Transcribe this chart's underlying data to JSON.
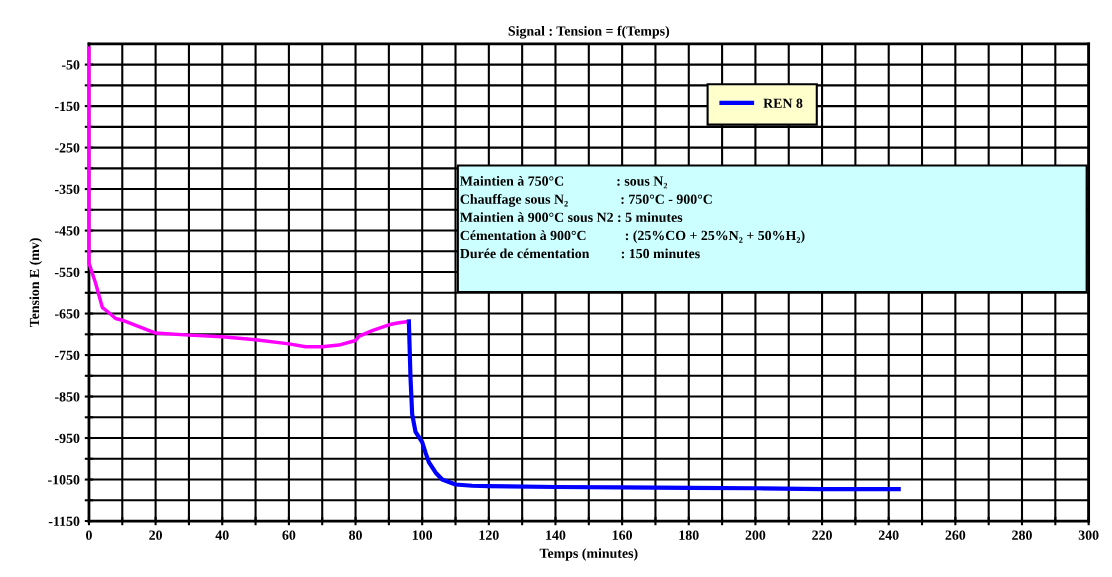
{
  "chart_data": {
    "type": "line",
    "title": "Signal : Tension = f(Temps)",
    "xlabel": "Temps (minutes)",
    "ylabel": "Tension E (mv)",
    "xlim": [
      0,
      300
    ],
    "ylim": [
      -1150,
      0
    ],
    "xticks": [
      0,
      {
        "value": 10,
        "label": null
      },
      20,
      {
        "value": 30,
        "label": null
      },
      40,
      {
        "value": 50,
        "label": null
      },
      60,
      {
        "value": 70,
        "label": null
      },
      80,
      {
        "value": 90,
        "label": null
      },
      100,
      {
        "value": 110,
        "label": null
      },
      120,
      {
        "value": 130,
        "label": null
      },
      140,
      {
        "value": 150,
        "label": null
      },
      160,
      {
        "value": 170,
        "label": null
      },
      180,
      {
        "value": 190,
        "label": null
      },
      200,
      {
        "value": 210,
        "label": null
      },
      220,
      {
        "value": 230,
        "label": null
      },
      240,
      {
        "value": 250,
        "label": null
      },
      260,
      {
        "value": 270,
        "label": null
      },
      280,
      {
        "value": 290,
        "label": null
      },
      300
    ],
    "yticks": [
      {
        "value": -1150,
        "label": "-1150"
      },
      {
        "value": -1100,
        "label": null
      },
      {
        "value": -1050,
        "label": "-1050"
      },
      {
        "value": -1000,
        "label": null
      },
      {
        "value": -950,
        "label": "-950"
      },
      {
        "value": -900,
        "label": null
      },
      {
        "value": -850,
        "label": "-850"
      },
      {
        "value": -800,
        "label": null
      },
      {
        "value": -750,
        "label": "-750"
      },
      {
        "value": -700,
        "label": null
      },
      {
        "value": -650,
        "label": "-650"
      },
      {
        "value": -600,
        "label": null
      },
      {
        "value": -550,
        "label": "-550"
      },
      {
        "value": -500,
        "label": null
      },
      {
        "value": -450,
        "label": "-450"
      },
      {
        "value": -400,
        "label": null
      },
      {
        "value": -350,
        "label": "-350"
      },
      {
        "value": -300,
        "label": null
      },
      {
        "value": -250,
        "label": "-250"
      },
      {
        "value": -200,
        "label": null
      },
      {
        "value": -150,
        "label": "-150"
      },
      {
        "value": -100,
        "label": null
      },
      {
        "value": -50,
        "label": "-50"
      }
    ],
    "grid": true,
    "legend": "top right",
    "marker": "none",
    "line_style": "solid",
    "series": [
      {
        "color": "#ff00ff",
        "x": [
          0,
          0,
          2,
          4,
          6,
          8,
          10,
          20,
          30,
          40,
          50,
          60,
          65,
          70,
          75,
          80,
          81,
          85,
          90,
          93,
          96
        ],
        "values": [
          -10,
          -528,
          -577,
          -635,
          -648,
          -662,
          -666,
          -697,
          -702,
          -706,
          -713,
          -723,
          -730,
          -730,
          -726,
          -715,
          -705,
          -691,
          -677,
          -672,
          -669
        ]
      },
      {
        "name": "REN 8",
        "color": "#0000ff",
        "x": [
          96,
          96.5,
          97,
          98,
          100,
          101,
          102,
          104,
          106,
          110,
          115,
          120,
          140,
          160,
          180,
          200,
          220,
          243
        ],
        "values": [
          -669,
          -806,
          -893,
          -935,
          -960,
          -985,
          -1008,
          -1033,
          -1050,
          -1062,
          -1065,
          -1066,
          -1068,
          -1069,
          -1070,
          -1071,
          -1073,
          -1073
        ]
      }
    ],
    "annotations": [
      "Maintien à 750°C               : sous N₂",
      "Chauffage sous N₂               : 750°C - 900°C",
      "Maintien à 900°C sous N2 : 5 minutes",
      "Cémentation à 900°C           : (25%CO + 25%N₂ + 50%H₂)",
      "Durée de cémentation         : 150 minutes"
    ]
  }
}
